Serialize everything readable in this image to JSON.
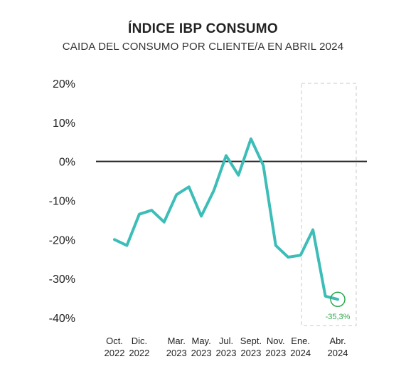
{
  "chart_data": {
    "type": "line",
    "title": "ÍNDICE IBP CONSUMO",
    "subtitle": "CAIDA DEL CONSUMO POR CLIENTE/A EN ABRIL 2024",
    "y_ticks": [
      "20%",
      "10%",
      "0%",
      "-10%",
      "-20%",
      "-30%",
      "-40%"
    ],
    "ylim": [
      -40,
      20
    ],
    "x_ticks": [
      {
        "month": "Oct.",
        "year": "2022"
      },
      {
        "month": "Dic.",
        "year": "2022"
      },
      {
        "month": "Mar.",
        "year": "2023"
      },
      {
        "month": "May.",
        "year": "2023"
      },
      {
        "month": "Jul.",
        "year": "2023"
      },
      {
        "month": "Sept.",
        "year": "2023"
      },
      {
        "month": "Nov.",
        "year": "2023"
      },
      {
        "month": "Ene.",
        "year": "2024"
      },
      {
        "month": "Abr.",
        "year": "2024"
      }
    ],
    "series": [
      {
        "color": "#3dbdb7",
        "x": [
          "2022-10",
          "2022-11",
          "2022-12",
          "2023-01",
          "2023-02",
          "2023-03",
          "2023-04",
          "2023-05",
          "2023-06",
          "2023-07",
          "2023-08",
          "2023-09",
          "2023-10",
          "2023-11",
          "2023-12",
          "2024-01",
          "2024-02",
          "2024-03",
          "2024-04"
        ],
        "values": [
          -20,
          -21.5,
          -13.5,
          -12.5,
          -15.5,
          -8.5,
          -6.5,
          -14,
          -7.5,
          1.5,
          -3.5,
          5.8,
          -1,
          -21.5,
          -24.5,
          -24,
          -17.5,
          -34.5,
          -35.3
        ]
      }
    ],
    "highlight": {
      "label": "-35,3%",
      "color": "#2fa84f",
      "box_color": "#c8c8c8"
    },
    "zero_line_color": "#222222",
    "grid": false
  }
}
